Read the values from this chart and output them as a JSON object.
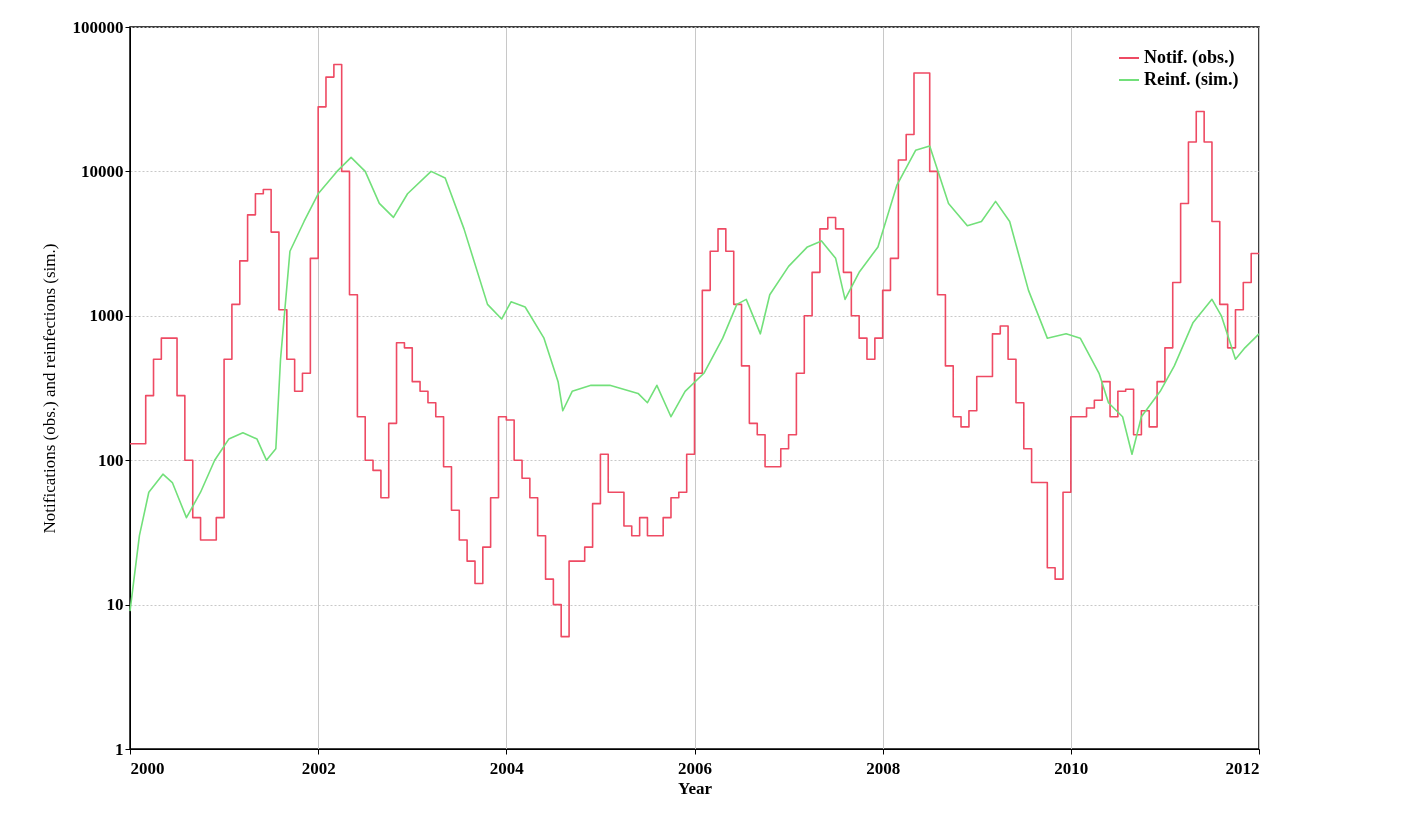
{
  "chart_data": {
    "type": "line",
    "xlabel": "Year",
    "ylabel": "Notifications (obs.) and reinfections (sim.)",
    "xlim": [
      2000,
      2012
    ],
    "xticks": [
      2000,
      2002,
      2004,
      2006,
      2008,
      2010,
      2012
    ],
    "ylim": [
      1,
      100000
    ],
    "yticks": [
      1,
      10,
      100,
      1000,
      10000,
      100000
    ],
    "log": "y",
    "grid": true,
    "legend": "top right",
    "series": [
      {
        "name": "Notif. (obs.)",
        "type": "step",
        "color": "#ee4a63",
        "x": [
          2000,
          2000.083,
          2000.167,
          2000.25,
          2000.333,
          2000.417,
          2000.5,
          2000.583,
          2000.667,
          2000.75,
          2000.833,
          2000.917,
          2001,
          2001.083,
          2001.167,
          2001.25,
          2001.333,
          2001.417,
          2001.5,
          2001.583,
          2001.667,
          2001.75,
          2001.833,
          2001.917,
          2002,
          2002.083,
          2002.167,
          2002.25,
          2002.333,
          2002.417,
          2002.5,
          2002.583,
          2002.667,
          2002.75,
          2002.833,
          2002.917,
          2003,
          2003.083,
          2003.167,
          2003.25,
          2003.333,
          2003.417,
          2003.5,
          2003.583,
          2003.667,
          2003.75,
          2003.833,
          2003.917,
          2004,
          2004.083,
          2004.167,
          2004.25,
          2004.333,
          2004.417,
          2004.5,
          2004.583,
          2004.667,
          2004.75,
          2004.833,
          2004.917,
          2005,
          2005.083,
          2005.167,
          2005.25,
          2005.333,
          2005.417,
          2005.5,
          2005.583,
          2005.667,
          2005.75,
          2005.833,
          2005.917,
          2006,
          2006.083,
          2006.167,
          2006.25,
          2006.333,
          2006.417,
          2006.5,
          2006.583,
          2006.667,
          2006.75,
          2006.833,
          2006.917,
          2007,
          2007.083,
          2007.167,
          2007.25,
          2007.333,
          2007.417,
          2007.5,
          2007.583,
          2007.667,
          2007.75,
          2007.833,
          2007.917,
          2008,
          2008.083,
          2008.167,
          2008.25,
          2008.333,
          2008.417,
          2008.5,
          2008.583,
          2008.667,
          2008.75,
          2008.833,
          2008.917,
          2009,
          2009.083,
          2009.167,
          2009.25,
          2009.333,
          2009.417,
          2009.5,
          2009.583,
          2009.667,
          2009.75,
          2009.833,
          2009.917,
          2010,
          2010.083,
          2010.167,
          2010.25,
          2010.333,
          2010.417,
          2010.5,
          2010.583,
          2010.667,
          2010.75,
          2010.833,
          2010.917,
          2011,
          2011.083,
          2011.167,
          2011.25,
          2011.333,
          2011.417,
          2011.5,
          2011.583,
          2011.667,
          2011.75,
          2011.833,
          2011.917,
          2012
        ],
        "values": [
          130,
          130,
          280,
          500,
          700,
          700,
          280,
          100,
          40,
          28,
          28,
          40,
          500,
          1200,
          2400,
          5000,
          7000,
          7500,
          3800,
          1100,
          500,
          300,
          400,
          2500,
          28000,
          45000,
          55000,
          10000,
          1400,
          200,
          100,
          85,
          55,
          180,
          650,
          600,
          350,
          300,
          250,
          200,
          90,
          45,
          28,
          20,
          14,
          25,
          55,
          200,
          190,
          100,
          75,
          55,
          30,
          15,
          10,
          6,
          20,
          20,
          25,
          50,
          110,
          60,
          60,
          35,
          30,
          40,
          30,
          30,
          40,
          55,
          60,
          110,
          400,
          1500,
          2800,
          4000,
          2800,
          1200,
          450,
          180,
          150,
          90,
          90,
          120,
          150,
          400,
          1000,
          2000,
          4000,
          4800,
          4000,
          2000,
          1000,
          700,
          500,
          700,
          1500,
          2500,
          12000,
          18000,
          48000,
          48000,
          10000,
          1400,
          450,
          200,
          170,
          220,
          380,
          380,
          750,
          850,
          500,
          250,
          120,
          70,
          70,
          18,
          15,
          60,
          200,
          200,
          230,
          260,
          350,
          200,
          300,
          310,
          150,
          220,
          170,
          350,
          600,
          1700,
          6000,
          16000,
          26000,
          16000,
          4500,
          1200,
          600,
          1100,
          1700,
          2700,
          2700
        ]
      },
      {
        "name": "Reinf. (sim.)",
        "type": "line",
        "color": "#72e07a",
        "x": [
          2000,
          2000.1,
          2000.2,
          2000.35,
          2000.45,
          2000.6,
          2000.75,
          2000.9,
          2001.05,
          2001.2,
          2001.35,
          2001.45,
          2001.55,
          2001.6,
          2001.7,
          2001.85,
          2002,
          2002.2,
          2002.35,
          2002.5,
          2002.65,
          2002.8,
          2002.95,
          2003.2,
          2003.35,
          2003.55,
          2003.8,
          2003.95,
          2004.05,
          2004.2,
          2004.4,
          2004.55,
          2004.6,
          2004.7,
          2004.9,
          2005.1,
          2005.4,
          2005.5,
          2005.6,
          2005.75,
          2005.9,
          2006.1,
          2006.3,
          2006.45,
          2006.55,
          2006.7,
          2006.8,
          2007,
          2007.2,
          2007.35,
          2007.5,
          2007.6,
          2007.75,
          2007.95,
          2008.15,
          2008.35,
          2008.5,
          2008.7,
          2008.9,
          2009.05,
          2009.2,
          2009.35,
          2009.55,
          2009.75,
          2009.95,
          2010.1,
          2010.3,
          2010.4,
          2010.55,
          2010.65,
          2010.75,
          2010.95,
          2011.1,
          2011.3,
          2011.5,
          2011.6,
          2011.75,
          2011.85,
          2012
        ],
        "values": [
          9,
          30,
          60,
          80,
          70,
          40,
          60,
          100,
          140,
          155,
          140,
          100,
          120,
          500,
          2800,
          4500,
          7000,
          10000,
          12500,
          10000,
          6000,
          4800,
          7000,
          10000,
          9000,
          4000,
          1200,
          950,
          1250,
          1150,
          700,
          350,
          220,
          300,
          330,
          330,
          290,
          250,
          330,
          200,
          300,
          400,
          700,
          1200,
          1300,
          750,
          1400,
          2200,
          3000,
          3300,
          2500,
          1300,
          2000,
          3000,
          8000,
          14000,
          15000,
          6000,
          4200,
          4500,
          6200,
          4500,
          1500,
          700,
          750,
          700,
          400,
          250,
          200,
          110,
          200,
          300,
          450,
          900,
          1300,
          1000,
          500,
          600,
          750
        ]
      }
    ]
  }
}
